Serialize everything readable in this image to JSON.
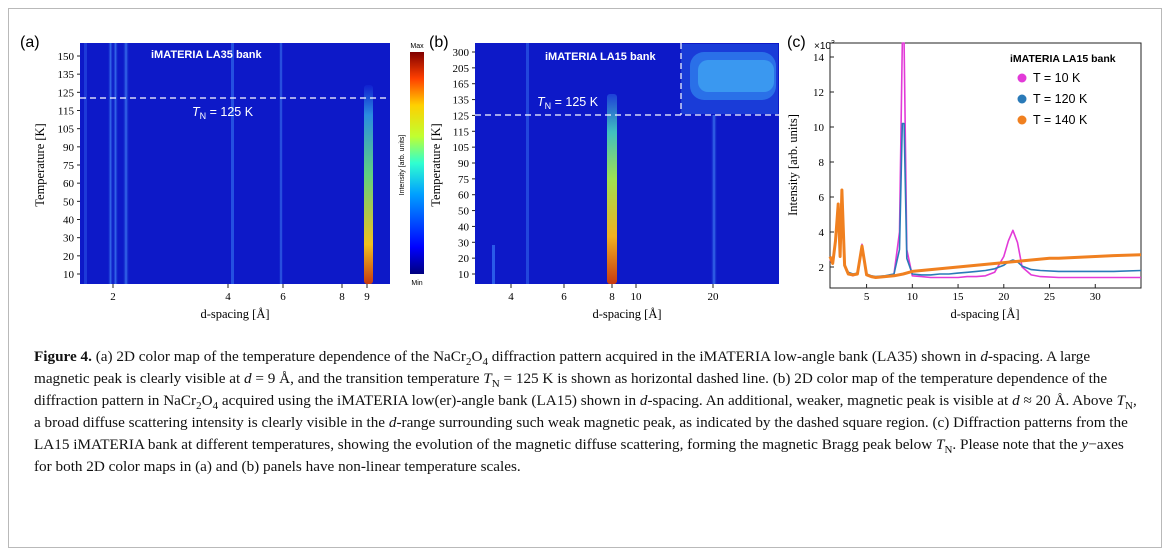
{
  "panels": {
    "a": {
      "label": "(a)",
      "bank": "iMATERIA LA35 bank",
      "tn_label_T": "T",
      "tn_label_sub": "N",
      "tn_label_rest": " = 125 K",
      "xlabel": "d-spacing [Å]",
      "ylabel": "Temperature [K]",
      "yticks": [
        "150",
        "135",
        "125",
        "115",
        "105",
        "90",
        "75",
        "60",
        "50",
        "40",
        "30",
        "20",
        "10"
      ],
      "xticks": [
        "2",
        "4",
        "6",
        "8",
        "9"
      ],
      "colorbar": {
        "max": "Max",
        "min": "Min",
        "label": "Intensity [arb. units]"
      }
    },
    "b": {
      "label": "(b)",
      "bank": "iMATERIA LA15 bank",
      "tn_label_T": "T",
      "tn_label_sub": "N",
      "tn_label_rest": " = 125 K",
      "xlabel": "d-spacing [Å]",
      "ylabel": "Temperature [K]",
      "yticks": [
        "300",
        "205",
        "165",
        "135",
        "125",
        "115",
        "105",
        "90",
        "75",
        "60",
        "50",
        "40",
        "30",
        "20",
        "10"
      ],
      "xticks": [
        "4",
        "6",
        "8",
        "10",
        "20"
      ]
    },
    "c": {
      "label": "(c)",
      "multiplier": "×10",
      "multiplier_exp": "3",
      "bank": "iMATERIA LA15 bank",
      "xlabel": "d-spacing [Å]",
      "ylabel": "Intensity [arb. units]",
      "yticks": [
        "2",
        "4",
        "6",
        "8",
        "10",
        "12",
        "14"
      ],
      "xticks": [
        "5",
        "10",
        "15",
        "20",
        "25",
        "30"
      ]
    }
  },
  "chart_data": {
    "type": "line",
    "title": "",
    "xlabel": "d-spacing [Å]",
    "ylabel": "Intensity [arb. units]",
    "xlim": [
      1,
      35
    ],
    "ylim": [
      0.8,
      14.8
    ],
    "y_multiplier": "×10^3",
    "legend_position": "top-right",
    "series": [
      {
        "name": "T = 10 K",
        "color": "#e23ad8",
        "x": [
          1,
          1.3,
          1.6,
          1.9,
          2.1,
          2.3,
          2.6,
          3,
          3.5,
          4,
          4.5,
          5,
          5.5,
          6,
          7,
          8,
          8.6,
          8.9,
          9.1,
          9.4,
          10,
          11,
          12,
          13,
          14,
          15,
          16,
          17,
          18,
          19,
          20,
          20.5,
          21,
          21.5,
          22,
          23,
          24,
          26,
          28,
          30,
          32,
          35
        ],
        "y": [
          2.4,
          2.2,
          3.4,
          5.6,
          2.6,
          6.3,
          2.1,
          1.6,
          1.5,
          1.6,
          3.3,
          1.55,
          1.45,
          1.4,
          1.45,
          1.6,
          4,
          14.8,
          14.8,
          3,
          1.5,
          1.45,
          1.4,
          1.4,
          1.4,
          1.4,
          1.45,
          1.45,
          1.5,
          1.7,
          2.6,
          3.5,
          4.1,
          3.4,
          2,
          1.55,
          1.45,
          1.4,
          1.4,
          1.4,
          1.4,
          1.4
        ]
      },
      {
        "name": "T = 120 K",
        "color": "#2a7ab8",
        "x": [
          1,
          1.3,
          1.6,
          1.9,
          2.1,
          2.3,
          2.6,
          3,
          3.5,
          4,
          4.5,
          5,
          5.5,
          6,
          7,
          8,
          8.6,
          8.9,
          9.1,
          9.4,
          10,
          11,
          12,
          13,
          14,
          15,
          16,
          17,
          18,
          19,
          20,
          20.5,
          21,
          21.5,
          22,
          23,
          24,
          26,
          28,
          30,
          32,
          35
        ],
        "y": [
          2.5,
          2.3,
          3.5,
          5.5,
          2.6,
          6.2,
          2.1,
          1.7,
          1.6,
          1.65,
          3.2,
          1.6,
          1.5,
          1.45,
          1.5,
          1.6,
          3,
          10.2,
          10.2,
          2.5,
          1.6,
          1.55,
          1.55,
          1.6,
          1.6,
          1.65,
          1.7,
          1.75,
          1.8,
          1.9,
          2.1,
          2.3,
          2.4,
          2.3,
          2.05,
          1.85,
          1.8,
          1.75,
          1.75,
          1.75,
          1.75,
          1.8
        ]
      },
      {
        "name": "T = 140 K",
        "color": "#f08020",
        "x": [
          1,
          1.3,
          1.6,
          1.9,
          2.1,
          2.3,
          2.6,
          3,
          3.5,
          4,
          4.5,
          5,
          5.5,
          6,
          7,
          8,
          9,
          10,
          11,
          12,
          13,
          14,
          15,
          16,
          17,
          18,
          19,
          20,
          21,
          22,
          23,
          24,
          25,
          26,
          28,
          30,
          32,
          35
        ],
        "y": [
          2.6,
          2.2,
          3.5,
          5.6,
          2.6,
          6.4,
          2.1,
          1.6,
          1.55,
          1.6,
          3.2,
          1.55,
          1.45,
          1.4,
          1.45,
          1.5,
          1.6,
          1.75,
          1.8,
          1.85,
          1.9,
          1.95,
          2,
          2.05,
          2.1,
          2.15,
          2.2,
          2.25,
          2.3,
          2.35,
          2.4,
          2.45,
          2.5,
          2.5,
          2.55,
          2.6,
          2.65,
          2.7
        ]
      }
    ]
  },
  "caption": {
    "fig_label": "Figure 4.",
    "segments": [
      {
        "t": " (a) 2D color map of the temperature dependence of the NaCr"
      },
      {
        "sub": "2"
      },
      {
        "t": "O"
      },
      {
        "sub": "4"
      },
      {
        "t": " diffraction pattern acquired in the iMATERIA low-angle bank (LA35) shown in "
      },
      {
        "i": "d"
      },
      {
        "t": "-spacing. A large magnetic peak is clearly visible at "
      },
      {
        "i": "d"
      },
      {
        "t": " = 9 Å, and the transition temperature "
      },
      {
        "i": "T"
      },
      {
        "sub": "N"
      },
      {
        "t": " = 125 K is shown as horizontal dashed line. (b) 2D color map of the temperature dependence of the diffraction pattern in NaCr"
      },
      {
        "sub": "2"
      },
      {
        "t": "O"
      },
      {
        "sub": "4"
      },
      {
        "t": " acquired using the iMATERIA low(er)-angle bank (LA15) shown in "
      },
      {
        "i": "d"
      },
      {
        "t": "-spacing. An additional, weaker, magnetic peak is visible at "
      },
      {
        "i": "d"
      },
      {
        "t": " ≈ 20 Å. Above "
      },
      {
        "i": "T"
      },
      {
        "sub": "N"
      },
      {
        "t": ", a broad diffuse scattering intensity is clearly visible in the "
      },
      {
        "i": "d"
      },
      {
        "t": "-range surrounding such weak magnetic peak, as indicated by the dashed square region. (c) Diffraction patterns from the LA15 iMATERIA bank at different temperatures, showing the evolution of the magnetic diffuse scattering, forming the magnetic Bragg peak below "
      },
      {
        "i": "T"
      },
      {
        "sub": "N"
      },
      {
        "t": ". Please note that the "
      },
      {
        "i": "y"
      },
      {
        "t": "−axes for both 2D color maps in (a) and (b) panels have non-linear temperature scales."
      }
    ]
  }
}
